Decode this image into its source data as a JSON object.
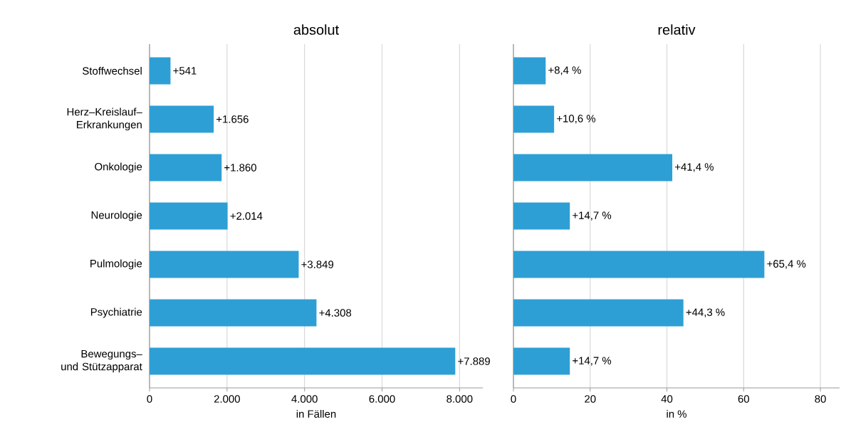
{
  "chart_data": [
    {
      "type": "bar",
      "orientation": "horizontal",
      "title": "absolut",
      "xlabel": "in Fällen",
      "categories": [
        "Stoffwechsel",
        "Herz–Kreislauf–Erkrankungen",
        "Onkologie",
        "Neurologie",
        "Pulmologie",
        "Psychiatrie",
        "Bewegungs– und Stützapparat"
      ],
      "values": [
        541,
        1656,
        1860,
        2014,
        3849,
        4308,
        7889
      ],
      "value_labels": [
        "+541",
        "+1.656",
        "+1.860",
        "+2.014",
        "+3.849",
        "+4.308",
        "+7.889"
      ],
      "color": "#2e9fd4",
      "xlim": [
        0,
        8600
      ],
      "xticks": [
        0,
        {
          "value": 2000,
          "label": "2.000"
        },
        {
          "value": 4000,
          "label": "4.000"
        },
        {
          "value": 6000,
          "label": "6.000"
        },
        {
          "value": 8000,
          "label": "8.000"
        }
      ],
      "grid": "x"
    },
    {
      "type": "bar",
      "orientation": "horizontal",
      "title": "relativ",
      "xlabel": "in %",
      "categories": [
        null,
        null,
        null,
        null,
        null,
        null,
        null
      ],
      "values": [
        8.4,
        10.6,
        41.4,
        14.7,
        65.4,
        44.3,
        14.7
      ],
      "value_labels": [
        "+8,4 %",
        "+10,6 %",
        "+41,4 %",
        "+14,7 %",
        "+65,4 %",
        "+44,3 %",
        "+14,7 %"
      ],
      "color": "#2e9fd4",
      "xlim": [
        0,
        85
      ],
      "xticks": [
        0,
        20,
        40,
        60,
        80
      ],
      "grid": "x"
    }
  ]
}
